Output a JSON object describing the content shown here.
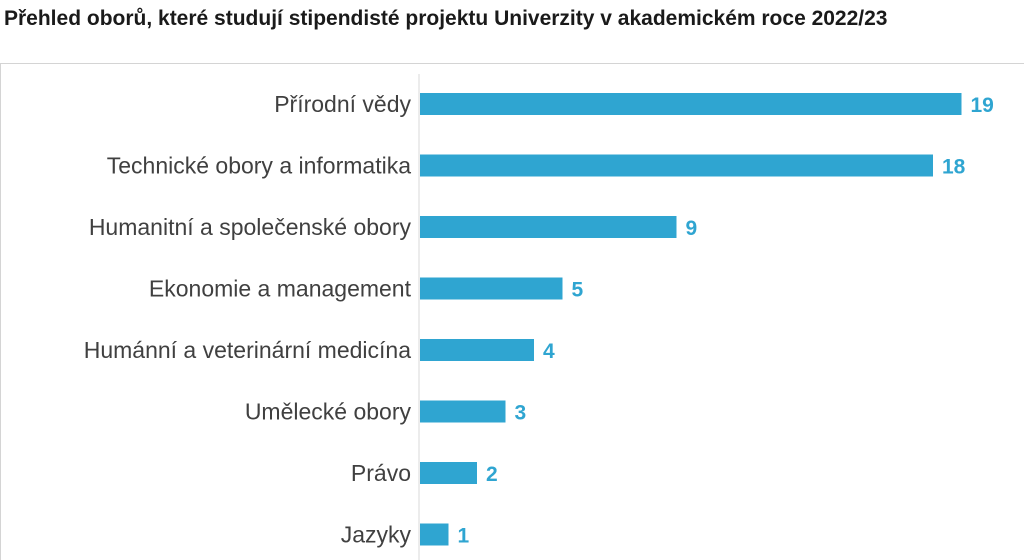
{
  "chart_data": {
    "type": "bar",
    "orientation": "horizontal",
    "title": "Přehled oborů, které studují stipendisté projektu Univerzity v akademickém roce 2022/23",
    "categories": [
      "Přírodní vědy",
      "Technické obory a informatika",
      "Humanitní a společenské obory",
      "Ekonomie a management",
      "Humánní a veterinární medicína",
      "Umělecké obory",
      "Právo",
      "Jazyky"
    ],
    "values": [
      19,
      18,
      9,
      5,
      4,
      3,
      2,
      1
    ],
    "xlim": [
      0,
      20
    ],
    "grid": false,
    "colors": {
      "bar": "#2fa5d1",
      "value_label": "#2fa5d1",
      "category_label": "#404040",
      "axis": "#d9d9d9"
    }
  }
}
